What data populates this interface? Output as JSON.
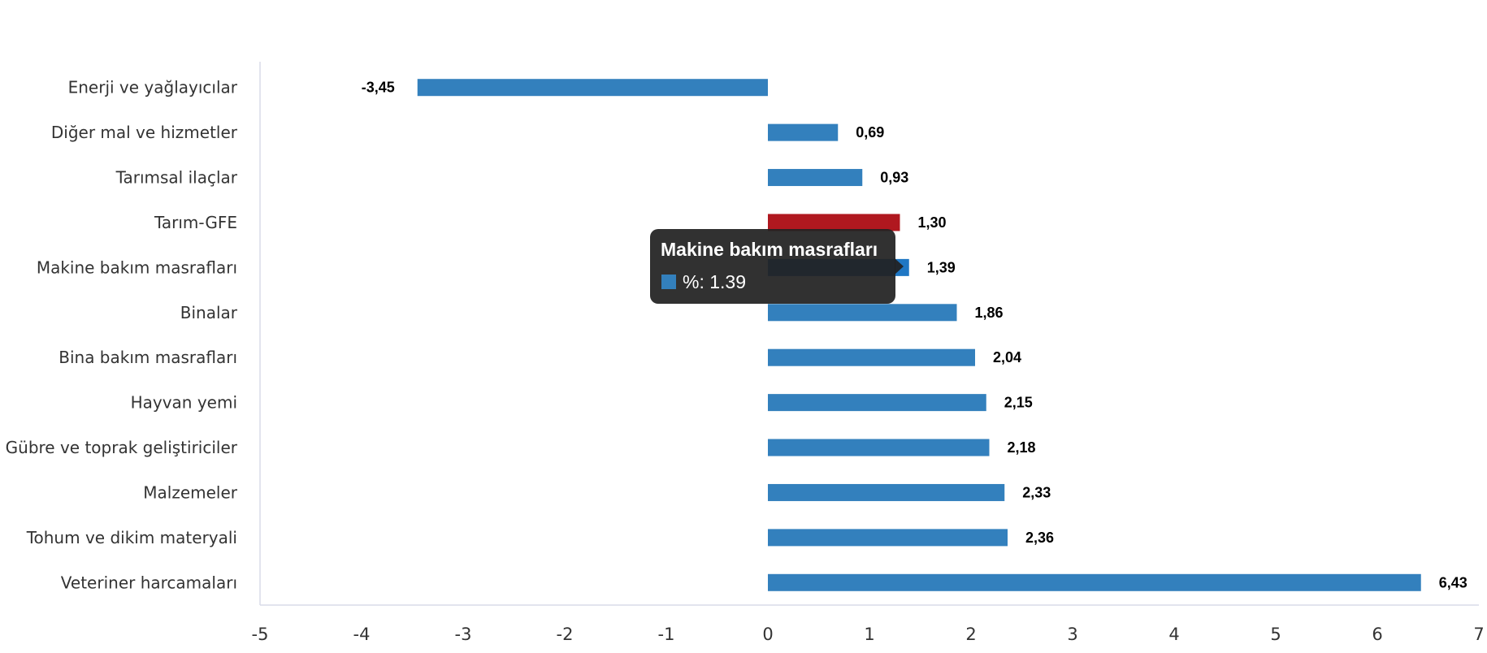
{
  "chart_data": {
    "type": "bar",
    "orientation": "horizontal",
    "categories": [
      "Enerji  ve yağlayıcılar",
      "Diğer mal ve hizmetler",
      "Tarımsal ilaçlar",
      "Tarım-GFE",
      "Makine bakım masrafları",
      "Binalar",
      "Bina bakım masrafları",
      "Hayvan yemi",
      "Gübre ve toprak geliştiriciler",
      "Malzemeler",
      "Tohum ve dikim materyali",
      "Veteriner harcamaları"
    ],
    "values": [
      -3.45,
      0.69,
      0.93,
      1.3,
      1.39,
      1.86,
      2.04,
      2.15,
      2.18,
      2.33,
      2.36,
      6.43
    ],
    "data_labels": [
      "-3,45",
      "0,69",
      "0,93",
      "1,30",
      "1,39",
      "1,86",
      "2,04",
      "2,15",
      "2,18",
      "2,33",
      "2,36",
      "6,43"
    ],
    "bar_colors": [
      "#3380bd",
      "#3380bd",
      "#3380bd",
      "#b0181f",
      "#1f77c4",
      "#3380bd",
      "#3380bd",
      "#3380bd",
      "#3380bd",
      "#3380bd",
      "#3380bd",
      "#3380bd"
    ],
    "xlim": [
      -5,
      7
    ],
    "xticks": [
      -5,
      -4,
      -3,
      -2,
      -1,
      0,
      1,
      2,
      3,
      4,
      5,
      6,
      7
    ],
    "grid": false,
    "series_color": "#3380bd",
    "highlight_color": "#b0181f"
  },
  "tooltip": {
    "title": "Makine bakım masrafları",
    "body": "%: 1.39",
    "swatch_color": "#3380bd"
  }
}
